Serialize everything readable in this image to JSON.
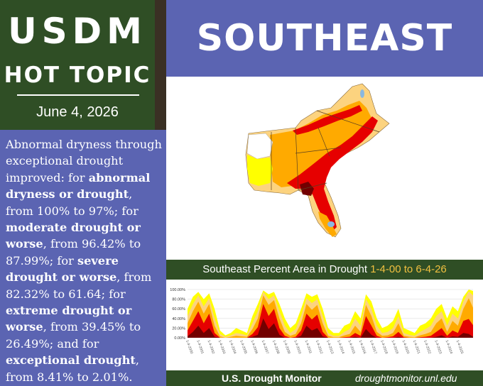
{
  "header": {
    "line1": "USDM",
    "line2": "HOT TOPIC",
    "date": "June 4, 2026"
  },
  "title": "SOUTHEAST",
  "summary": {
    "t1": "Abnormal dryness through exceptional drought improved: for ",
    "b1": "abnormal dryness or drought",
    "t2": ", from 100% to 97%; for ",
    "b2": "moderate drought or worse",
    "t3": ", from 96.42% to 87.99%; for ",
    "b3": "severe drought or worse",
    "t4": ", from 82.32% to 61.64; for ",
    "b4": "extreme drought or worse",
    "t5": ", from 39.45% to 26.49%; and for ",
    "b5": "exceptional drought",
    "t6": ", from 8.41% to 2.01%."
  },
  "chart_data": {
    "type": "area",
    "title_main": "Southeast Percent Area in Drought",
    "title_range": "1-4-00 to 6-4-26",
    "y_ticks": [
      "100.00%",
      "80.00%",
      "60.00%",
      "40.00%",
      "20.00%",
      "0.00%"
    ],
    "ylim": [
      0,
      100
    ],
    "x_ticks": [
      "1-4-2000",
      "1-4-2001",
      "1-4-2002",
      "1-4-2003",
      "1-4-2004",
      "1-4-2005",
      "1-4-2006",
      "1-4-2007",
      "1-4-2008",
      "1-4-2009",
      "1-4-2010",
      "1-4-2011",
      "1-4-2012",
      "1-4-2013",
      "1-4-2014",
      "1-4-2015",
      "1-4-2016",
      "1-4-2017",
      "1-4-2018",
      "1-4-2019",
      "1-4-2020",
      "1-4-2021",
      "1-4-2022",
      "1-4-2023",
      "1-4-2024",
      "1-4-2025"
    ],
    "series_colors": [
      "#ffff00",
      "#fcd37f",
      "#ffaa00",
      "#e60000",
      "#730000"
    ],
    "x_years": [
      2000,
      2000.5,
      2001,
      2001.5,
      2002,
      2002.5,
      2003,
      2003.5,
      2004,
      2004.5,
      2005,
      2005.5,
      2006,
      2006.5,
      2007,
      2007.5,
      2008,
      2008.5,
      2009,
      2009.5,
      2010,
      2010.5,
      2011,
      2011.5,
      2012,
      2012.5,
      2013,
      2013.5,
      2014,
      2014.5,
      2015,
      2015.5,
      2016,
      2016.5,
      2017,
      2017.5,
      2018,
      2018.5,
      2019,
      2019.5,
      2020,
      2020.5,
      2021,
      2021.5,
      2022,
      2022.5,
      2023,
      2023.5,
      2024,
      2024.5,
      2025,
      2025.5,
      2026,
      2026.4
    ],
    "series": [
      {
        "values": [
          60,
          85,
          95,
          80,
          92,
          60,
          15,
          5,
          10,
          20,
          15,
          10,
          45,
          70,
          98,
          90,
          95,
          70,
          40,
          20,
          30,
          60,
          92,
          85,
          90,
          60,
          20,
          10,
          10,
          25,
          30,
          55,
          40,
          90,
          75,
          40,
          20,
          25,
          35,
          60,
          20,
          15,
          10,
          25,
          30,
          40,
          60,
          70,
          40,
          65,
          55,
          85,
          100,
          97
        ]
      },
      {
        "values": [
          45,
          70,
          88,
          65,
          82,
          40,
          8,
          2,
          5,
          10,
          8,
          5,
          30,
          55,
          95,
          80,
          88,
          55,
          25,
          10,
          18,
          45,
          82,
          72,
          80,
          45,
          10,
          4,
          4,
          12,
          18,
          40,
          25,
          80,
          60,
          25,
          10,
          12,
          20,
          45,
          10,
          6,
          4,
          12,
          18,
          25,
          45,
          55,
          25,
          50,
          40,
          75,
          96,
          88
        ]
      },
      {
        "values": [
          30,
          55,
          75,
          50,
          70,
          25,
          3,
          0,
          2,
          4,
          3,
          2,
          18,
          40,
          88,
          68,
          78,
          40,
          12,
          4,
          8,
          30,
          70,
          58,
          68,
          30,
          4,
          1,
          1,
          5,
          8,
          25,
          12,
          68,
          45,
          12,
          4,
          5,
          10,
          30,
          4,
          2,
          1,
          5,
          8,
          12,
          30,
          40,
          12,
          35,
          25,
          60,
          82,
          62
        ]
      },
      {
        "values": [
          15,
          35,
          55,
          30,
          50,
          10,
          0,
          0,
          0,
          0,
          0,
          0,
          8,
          22,
          70,
          45,
          60,
          20,
          4,
          0,
          2,
          15,
          50,
          38,
          48,
          12,
          0,
          0,
          0,
          1,
          2,
          10,
          4,
          45,
          25,
          4,
          0,
          1,
          3,
          12,
          1,
          0,
          0,
          1,
          2,
          4,
          12,
          20,
          4,
          15,
          10,
          35,
          39,
          26
        ]
      },
      {
        "values": [
          3,
          12,
          25,
          10,
          20,
          2,
          0,
          0,
          0,
          0,
          0,
          0,
          2,
          6,
          40,
          18,
          30,
          6,
          0,
          0,
          0,
          4,
          25,
          15,
          20,
          3,
          0,
          0,
          0,
          0,
          0,
          2,
          0,
          18,
          6,
          0,
          0,
          0,
          0,
          2,
          0,
          0,
          0,
          0,
          0,
          0,
          2,
          5,
          0,
          3,
          2,
          10,
          8,
          2
        ]
      }
    ]
  },
  "footer": {
    "brand": "U.S. Drought Monitor",
    "url": "droughtmonitor.unl.edu"
  },
  "map": {
    "colors": {
      "d0": "#ffff00",
      "d1": "#fcd37f",
      "d2": "#ffaa00",
      "d3": "#e60000",
      "d4": "#730000",
      "none": "#ffffff",
      "water": "#8ab8e0"
    }
  }
}
